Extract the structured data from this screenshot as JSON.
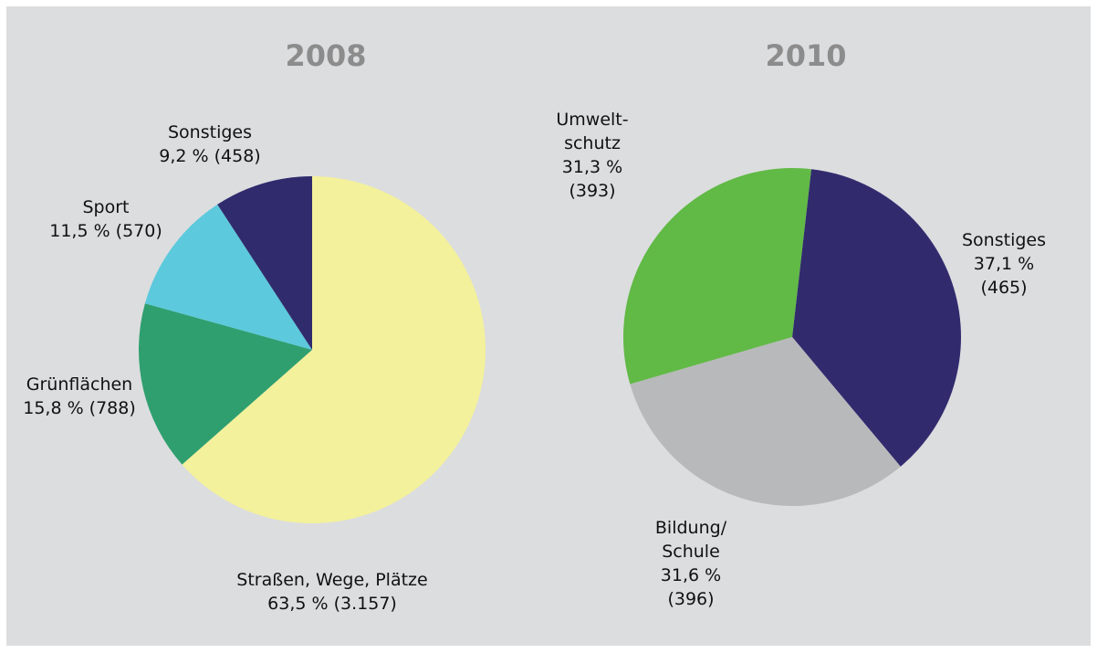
{
  "chart_data": [
    {
      "type": "pie",
      "title": "2008",
      "categories": [
        "Straßen, Wege, Plätze",
        "Grünflächen",
        "Sport",
        "Sonstiges"
      ],
      "values": [
        63.5,
        15.8,
        11.5,
        9.2
      ],
      "value_labels": [
        "63,5 %",
        "15,8 %",
        "11,5 %",
        "9,2 %"
      ],
      "counts": [
        3157,
        788,
        570,
        458
      ],
      "count_labels": [
        "(3.157)",
        "(788)",
        "(570)",
        "(458)"
      ],
      "colors": [
        "#f3f19b",
        "#2f9f6f",
        "#5cc9dc",
        "#302b6d"
      ]
    },
    {
      "type": "pie",
      "title": "2010",
      "categories": [
        "Sonstiges",
        "Bildung/\nSchule",
        "Umwelt-\nschutz"
      ],
      "values": [
        37.1,
        31.6,
        31.3
      ],
      "value_labels": [
        "37,1 %",
        "31,6 %",
        "31,3 %"
      ],
      "counts": [
        465,
        396,
        393
      ],
      "count_labels": [
        "(465)",
        "(396)",
        "(393)"
      ],
      "colors": [
        "#312b6e",
        "#b8b9bb",
        "#61b946"
      ]
    }
  ]
}
